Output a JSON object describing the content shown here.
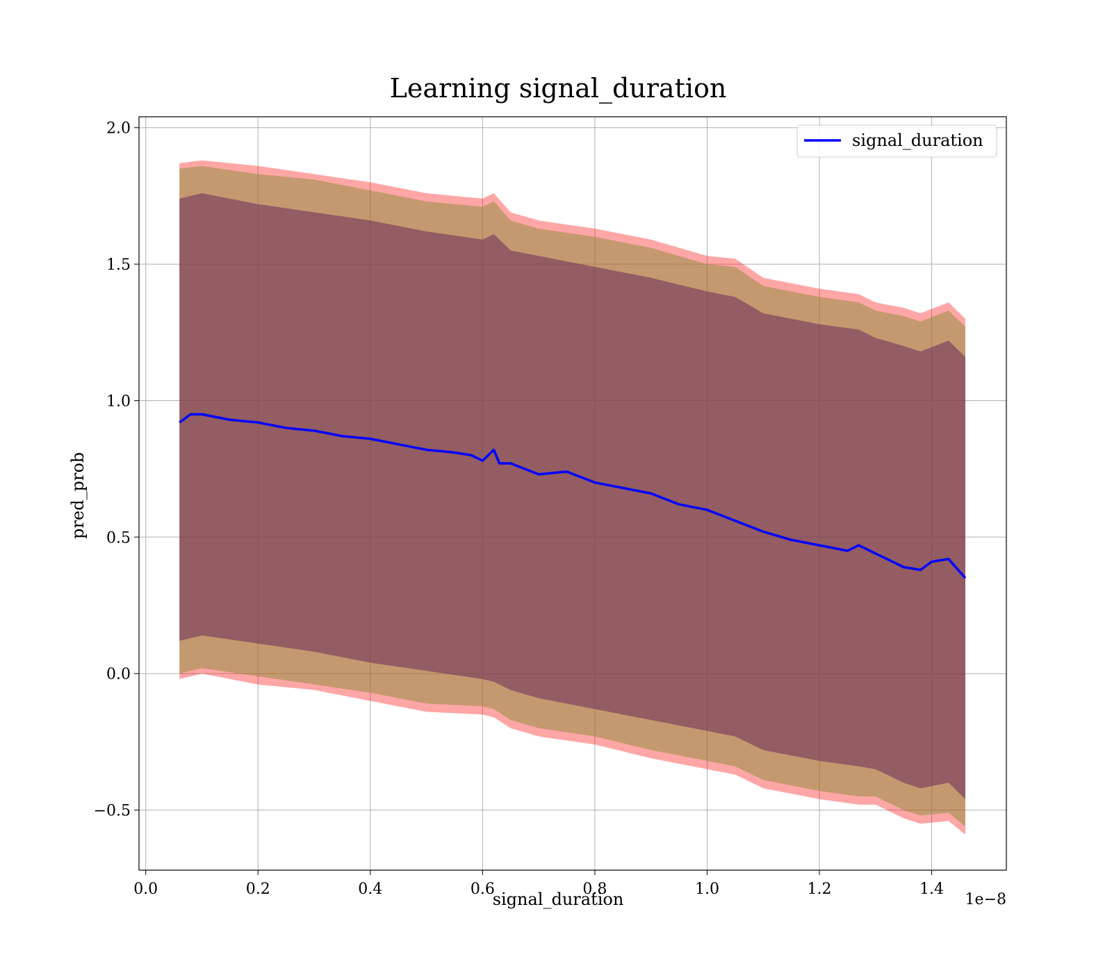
{
  "chart_data": {
    "type": "line",
    "title": "Learning signal_duration",
    "xlabel": "signal_duration",
    "ylabel": "pred_prob",
    "x_offset_text": "1e−8",
    "xlim": [
      -0.012,
      1.533
    ],
    "ylim": [
      -0.72,
      2.04
    ],
    "x_ticks": [
      0.0,
      0.2,
      0.4,
      0.6,
      0.8,
      1.0,
      1.2,
      1.4
    ],
    "x_tick_labels": [
      "0.0",
      "0.2",
      "0.4",
      "0.6",
      "0.8",
      "1.0",
      "1.2",
      "1.4"
    ],
    "y_ticks": [
      -0.5,
      0.0,
      0.5,
      1.0,
      1.5,
      2.0
    ],
    "y_tick_labels": [
      "−0.5",
      "0.0",
      "0.5",
      "1.0",
      "1.5",
      "2.0"
    ],
    "grid": true,
    "legend_position": "upper right",
    "series": [
      {
        "name": "signal_duration",
        "color": "#0000ff",
        "x": [
          0.06,
          0.08,
          0.1,
          0.15,
          0.2,
          0.25,
          0.3,
          0.35,
          0.4,
          0.45,
          0.5,
          0.55,
          0.58,
          0.6,
          0.62,
          0.63,
          0.65,
          0.7,
          0.75,
          0.8,
          0.85,
          0.9,
          0.95,
          1.0,
          1.05,
          1.1,
          1.15,
          1.2,
          1.25,
          1.27,
          1.3,
          1.35,
          1.38,
          1.4,
          1.43,
          1.46
        ],
        "y": [
          0.92,
          0.95,
          0.95,
          0.93,
          0.92,
          0.9,
          0.89,
          0.87,
          0.86,
          0.84,
          0.82,
          0.81,
          0.8,
          0.78,
          0.82,
          0.77,
          0.77,
          0.73,
          0.74,
          0.7,
          0.68,
          0.66,
          0.62,
          0.6,
          0.56,
          0.52,
          0.49,
          0.47,
          0.45,
          0.47,
          0.44,
          0.39,
          0.38,
          0.41,
          0.42,
          0.35
        ]
      }
    ],
    "bands": [
      {
        "kind": "outer",
        "fill_color": "#ff0000",
        "opacity": 0.35,
        "x": [
          0.06,
          0.1,
          0.2,
          0.3,
          0.4,
          0.5,
          0.6,
          0.62,
          0.65,
          0.7,
          0.8,
          0.9,
          1.0,
          1.05,
          1.1,
          1.2,
          1.27,
          1.3,
          1.35,
          1.38,
          1.43,
          1.46
        ],
        "upper": [
          1.87,
          1.88,
          1.86,
          1.83,
          1.8,
          1.76,
          1.74,
          1.76,
          1.69,
          1.66,
          1.63,
          1.59,
          1.53,
          1.52,
          1.45,
          1.41,
          1.39,
          1.36,
          1.34,
          1.32,
          1.36,
          1.3
        ],
        "lower": [
          -0.02,
          0.0,
          -0.04,
          -0.06,
          -0.1,
          -0.14,
          -0.15,
          -0.16,
          -0.2,
          -0.23,
          -0.26,
          -0.31,
          -0.35,
          -0.37,
          -0.42,
          -0.46,
          -0.48,
          -0.48,
          -0.53,
          -0.55,
          -0.54,
          -0.59
        ]
      },
      {
        "kind": "middle",
        "fill_color": "#8b8b3a",
        "opacity": 0.5,
        "x": [
          0.06,
          0.1,
          0.2,
          0.3,
          0.4,
          0.5,
          0.6,
          0.62,
          0.65,
          0.7,
          0.8,
          0.9,
          1.0,
          1.05,
          1.1,
          1.2,
          1.27,
          1.3,
          1.35,
          1.38,
          1.43,
          1.46
        ],
        "upper": [
          1.85,
          1.86,
          1.83,
          1.81,
          1.77,
          1.73,
          1.71,
          1.73,
          1.66,
          1.63,
          1.6,
          1.56,
          1.5,
          1.49,
          1.42,
          1.38,
          1.36,
          1.33,
          1.31,
          1.29,
          1.33,
          1.27
        ],
        "lower": [
          0.0,
          0.02,
          -0.01,
          -0.04,
          -0.07,
          -0.11,
          -0.12,
          -0.13,
          -0.17,
          -0.2,
          -0.23,
          -0.28,
          -0.32,
          -0.34,
          -0.39,
          -0.43,
          -0.45,
          -0.45,
          -0.5,
          -0.52,
          -0.51,
          -0.56
        ]
      },
      {
        "kind": "inner",
        "fill_color": "#6b2a5a",
        "opacity": 0.55,
        "x": [
          0.06,
          0.1,
          0.2,
          0.3,
          0.4,
          0.5,
          0.6,
          0.62,
          0.65,
          0.7,
          0.8,
          0.9,
          1.0,
          1.05,
          1.1,
          1.2,
          1.27,
          1.3,
          1.35,
          1.38,
          1.43,
          1.46
        ],
        "upper": [
          1.74,
          1.76,
          1.72,
          1.69,
          1.66,
          1.62,
          1.59,
          1.61,
          1.55,
          1.53,
          1.49,
          1.45,
          1.4,
          1.38,
          1.32,
          1.28,
          1.26,
          1.23,
          1.2,
          1.18,
          1.22,
          1.16
        ],
        "lower": [
          0.12,
          0.14,
          0.11,
          0.08,
          0.04,
          0.01,
          -0.02,
          -0.03,
          -0.06,
          -0.09,
          -0.13,
          -0.17,
          -0.21,
          -0.23,
          -0.28,
          -0.32,
          -0.34,
          -0.35,
          -0.4,
          -0.42,
          -0.4,
          -0.46
        ]
      }
    ]
  }
}
